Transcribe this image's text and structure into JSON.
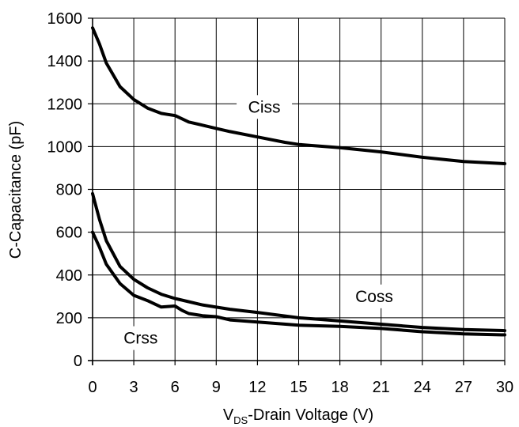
{
  "chart_data": {
    "type": "line",
    "title": "",
    "xlabel": {
      "main": "V",
      "subscript": "DS",
      "rest": "-Drain Voltage (V)"
    },
    "ylabel": "C-Capacitance (pF)",
    "xlim": [
      0,
      30
    ],
    "ylim": [
      0,
      1600
    ],
    "xticks": [
      0,
      3,
      6,
      9,
      12,
      15,
      18,
      21,
      24,
      27,
      30
    ],
    "yticks": [
      0,
      200,
      400,
      600,
      800,
      1000,
      1200,
      1400,
      1600
    ],
    "grid": true,
    "legend": "none",
    "color": "#000000",
    "series": [
      {
        "name": "Ciss",
        "x": [
          0,
          0.5,
          1,
          2,
          3,
          4,
          5,
          5.5,
          6,
          7,
          8,
          9,
          10,
          12,
          14,
          15,
          18,
          21,
          24,
          27,
          30
        ],
        "y": [
          1555,
          1480,
          1390,
          1280,
          1220,
          1180,
          1155,
          1150,
          1145,
          1115,
          1100,
          1085,
          1070,
          1045,
          1020,
          1010,
          995,
          975,
          950,
          930,
          920
        ]
      },
      {
        "name": "Coss",
        "x": [
          0,
          0.5,
          1,
          2,
          3,
          4,
          5,
          6,
          8,
          10,
          12,
          15,
          18,
          21,
          24,
          27,
          30
        ],
        "y": [
          780,
          660,
          560,
          440,
          380,
          340,
          310,
          290,
          260,
          240,
          225,
          200,
          185,
          170,
          155,
          145,
          140
        ]
      },
      {
        "name": "Crss",
        "x": [
          0,
          0.5,
          1,
          2,
          3,
          4,
          5,
          6,
          6.5,
          7,
          8,
          9,
          10,
          12,
          15,
          18,
          21,
          24,
          27,
          30
        ],
        "y": [
          600,
          530,
          450,
          360,
          305,
          280,
          250,
          255,
          235,
          220,
          210,
          205,
          190,
          180,
          165,
          160,
          150,
          135,
          125,
          120
        ]
      }
    ],
    "labels": [
      {
        "text": "Ciss",
        "series": "Ciss",
        "at": [
          12.5,
          1185
        ]
      },
      {
        "text": "Coss",
        "series": "Coss",
        "at": [
          20.5,
          300
        ]
      },
      {
        "text": "Crss",
        "series": "Crss",
        "at": [
          3.5,
          105
        ]
      }
    ]
  }
}
